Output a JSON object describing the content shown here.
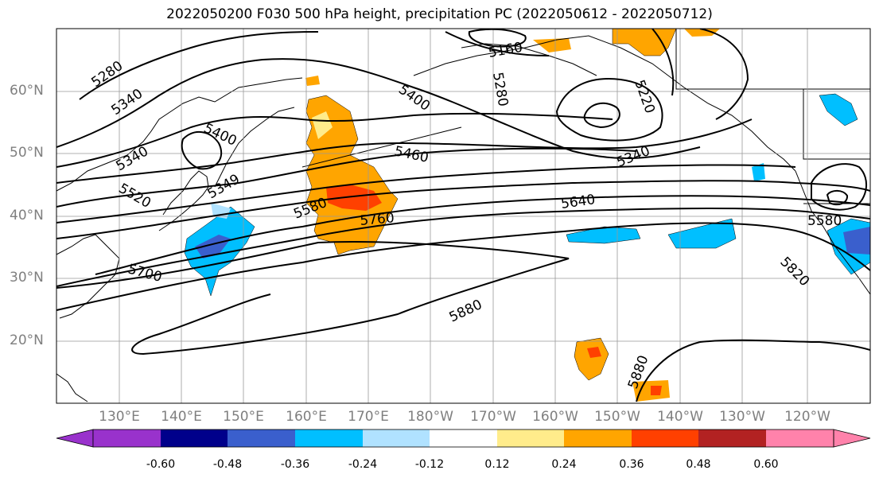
{
  "title": "2022050200 F030 500 hPa height, precipitation PC (2022050612 - 2022050712)",
  "latitude_labels": [
    "60°N",
    "50°N",
    "40°N",
    "30°N",
    "20°N"
  ],
  "longitude_labels": [
    "130°E",
    "140°E",
    "150°E",
    "160°E",
    "170°E",
    "180°W",
    "170°W",
    "160°W",
    "150°W",
    "140°W",
    "130°W",
    "120°W"
  ],
  "contour_labels": [
    "5280",
    "5340",
    "5400",
    "5340",
    "5520",
    "5349",
    "5160",
    "5280",
    "5400",
    "5220",
    "5460",
    "5340",
    "5580",
    "5760",
    "5640",
    "5700",
    "5580",
    "5820",
    "5880",
    "5880"
  ],
  "colorbar": {
    "ticks": [
      "-0.60",
      "-0.48",
      "-0.36",
      "-0.24",
      "-0.12",
      "0.12",
      "0.24",
      "0.36",
      "0.48",
      "0.60"
    ],
    "colors": [
      "#9932cc",
      "#00008b",
      "#3a5fcd",
      "#00bfff",
      "#b0e2ff",
      "#ffffff",
      "#ffec8b",
      "#ffa500",
      "#ff4000",
      "#b22222",
      "#ff82ab"
    ]
  }
}
